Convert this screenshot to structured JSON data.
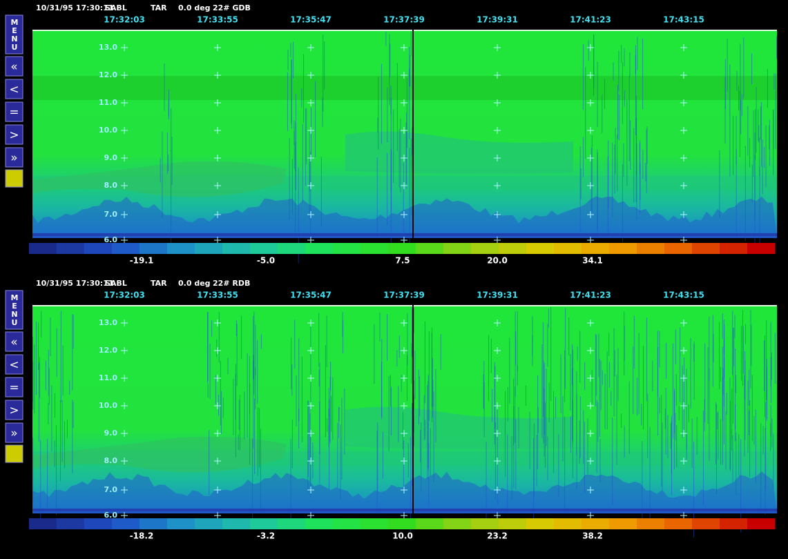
{
  "toolbar": {
    "menu": "MENU",
    "buttons": [
      "«",
      "<",
      "=",
      ">",
      "»"
    ]
  },
  "panels": [
    {
      "header": {
        "datetime": "10/31/95 17:30:11",
        "site": "SABL",
        "mode": "TAR",
        "angle": "0.0 deg",
        "product": "22# GDB"
      },
      "time_labels": [
        "17:32:03",
        "17:33:55",
        "17:35:47",
        "17:37:39",
        "17:39:31",
        "17:41:23",
        "17:43:15"
      ],
      "altitude_labels": [
        "13.0",
        "12.0",
        "11.0",
        "10.0",
        "9.0",
        "8.0",
        "7.0",
        "6.0"
      ],
      "colorbar_labels": [
        "-19.1",
        "-5.0",
        "7.5",
        "20.0",
        "34.1"
      ]
    },
    {
      "header": {
        "datetime": "10/31/95 17:30:11",
        "site": "SABL",
        "mode": "TAR",
        "angle": "0.0 deg",
        "product": "22# RDB"
      },
      "time_labels": [
        "17:32:03",
        "17:33:55",
        "17:35:47",
        "17:37:39",
        "17:39:31",
        "17:41:23",
        "17:43:15"
      ],
      "altitude_labels": [
        "13.0",
        "12.0",
        "11.0",
        "10.0",
        "9.0",
        "8.0",
        "7.0",
        "6.0"
      ],
      "colorbar_labels": [
        "-18.2",
        "-3.2",
        "10.0",
        "23.2",
        "38.2"
      ]
    }
  ]
}
